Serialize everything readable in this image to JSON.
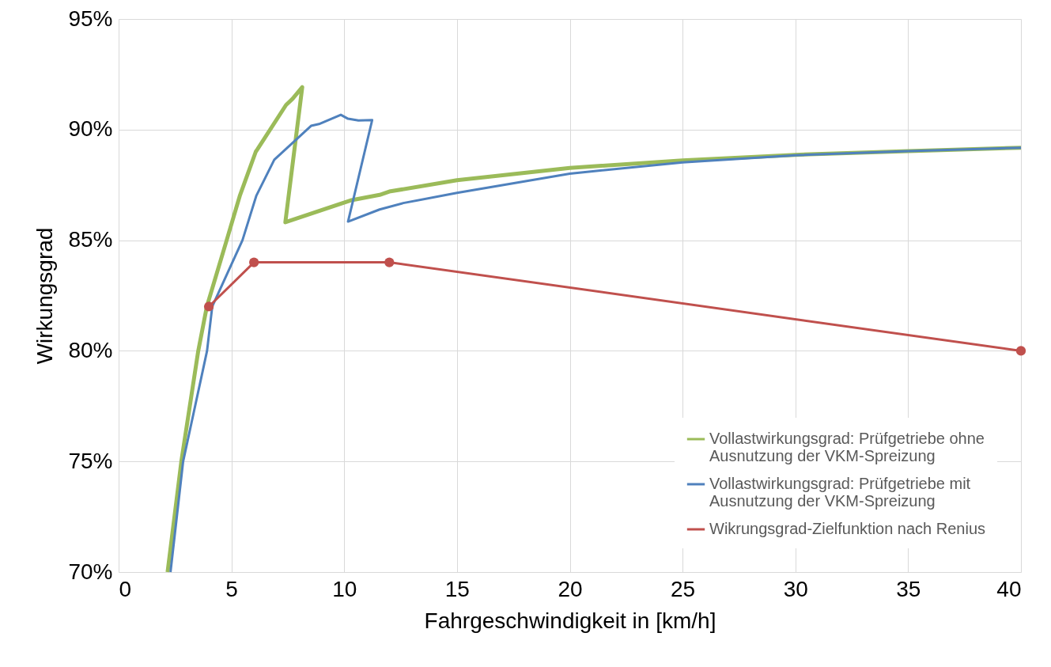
{
  "chart_data": {
    "type": "line",
    "xlabel": "Fahrgeschwindigkeit in [km/h]",
    "ylabel": "Wirkungsgrad",
    "xlim": [
      0,
      40
    ],
    "xticks": [
      0,
      5,
      10,
      15,
      20,
      25,
      30,
      35,
      40
    ],
    "ylim": [
      70,
      95
    ],
    "yticks": [
      {
        "value": 70,
        "label": "70%"
      },
      {
        "value": 75,
        "label": "75%"
      },
      {
        "value": 80,
        "label": "80%"
      },
      {
        "value": 85,
        "label": "85%"
      },
      {
        "value": 90,
        "label": "90%"
      },
      {
        "value": 95,
        "label": "95%"
      }
    ],
    "grid": true,
    "legend": "bottom right",
    "series": [
      {
        "name": "Vollastwirkungsgrad: Prüfgetriebe ohne Ausnutzung der VKM-Spreizung",
        "color": "#9bbb59",
        "marker": "none",
        "x": [
          2.17,
          2.78,
          3.53,
          3.91,
          4.79,
          5.37,
          6.08,
          6.16,
          7.42,
          7.71,
          8.14,
          7.39,
          10.28,
          11.57,
          12,
          15,
          20,
          25,
          30,
          35,
          40
        ],
        "values": [
          70,
          75,
          80,
          82,
          85,
          87,
          89,
          89.12,
          91.11,
          91.39,
          91.92,
          85.81,
          86.8,
          87.05,
          87.2,
          87.71,
          88.27,
          88.61,
          88.86,
          89.03,
          89.18
        ]
      },
      {
        "name": "Vollastwirkungsgrad: Prüfgetriebe mit Ausnutzung der VKM-Spreizung",
        "color": "#4f81bd",
        "marker": "none",
        "x": [
          2.3,
          2.86,
          3.92,
          4.15,
          5.49,
          6.1,
          6.9,
          8.53,
          8.88,
          9.85,
          10.17,
          10.63,
          11.24,
          10.17,
          11.57,
          12.62,
          15,
          20,
          25,
          30,
          35,
          40
        ],
        "values": [
          70,
          75,
          80,
          82,
          85,
          87,
          88.64,
          90.17,
          90.25,
          90.67,
          90.49,
          90.41,
          90.43,
          85.84,
          86.39,
          86.68,
          87.14,
          88.01,
          88.52,
          88.84,
          89.03,
          89.18
        ]
      },
      {
        "name": "Wikrungsgrad-Zielfunktion nach Renius",
        "color": "#c0504d",
        "marker": "circle",
        "x": [
          4,
          6,
          12,
          40
        ],
        "values": [
          82,
          84,
          84,
          80
        ]
      }
    ]
  }
}
